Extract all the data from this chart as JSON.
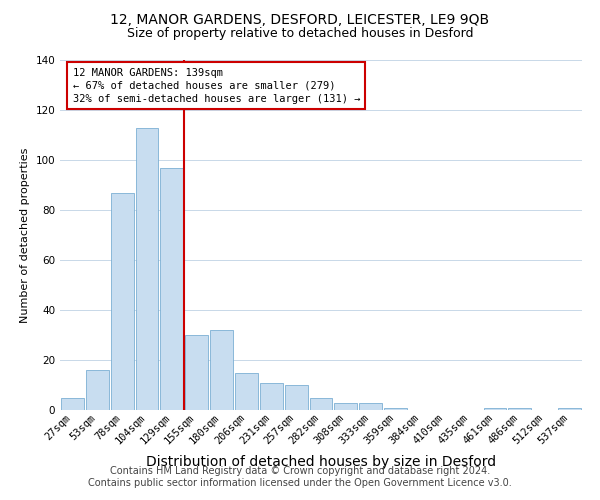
{
  "title1": "12, MANOR GARDENS, DESFORD, LEICESTER, LE9 9QB",
  "title2": "Size of property relative to detached houses in Desford",
  "xlabel": "Distribution of detached houses by size in Desford",
  "ylabel": "Number of detached properties",
  "categories": [
    "27sqm",
    "53sqm",
    "78sqm",
    "104sqm",
    "129sqm",
    "155sqm",
    "180sqm",
    "206sqm",
    "231sqm",
    "257sqm",
    "282sqm",
    "308sqm",
    "333sqm",
    "359sqm",
    "384sqm",
    "410sqm",
    "435sqm",
    "461sqm",
    "486sqm",
    "512sqm",
    "537sqm"
  ],
  "values": [
    5,
    16,
    87,
    113,
    97,
    30,
    32,
    15,
    11,
    10,
    5,
    3,
    3,
    1,
    0,
    0,
    0,
    1,
    1,
    0,
    1
  ],
  "bar_color": "#c8ddf0",
  "bar_edge_color": "#7bafd4",
  "subject_line_index": 4,
  "subject_line_color": "#cc0000",
  "subject_label": "12 MANOR GARDENS: 139sqm",
  "annotation_line2": "← 67% of detached houses are smaller (279)",
  "annotation_line3": "32% of semi-detached houses are larger (131) →",
  "annotation_box_color": "#cc0000",
  "ylim": [
    0,
    140
  ],
  "yticks": [
    0,
    20,
    40,
    60,
    80,
    100,
    120,
    140
  ],
  "footer1": "Contains HM Land Registry data © Crown copyright and database right 2024.",
  "footer2": "Contains public sector information licensed under the Open Government Licence v3.0.",
  "bg_color": "#ffffff",
  "grid_color": "#c8d8e8",
  "title1_fontsize": 10,
  "title2_fontsize": 9,
  "xlabel_fontsize": 10,
  "ylabel_fontsize": 8,
  "tick_fontsize": 7.5,
  "footer_fontsize": 7,
  "annot_fontsize": 7.5
}
